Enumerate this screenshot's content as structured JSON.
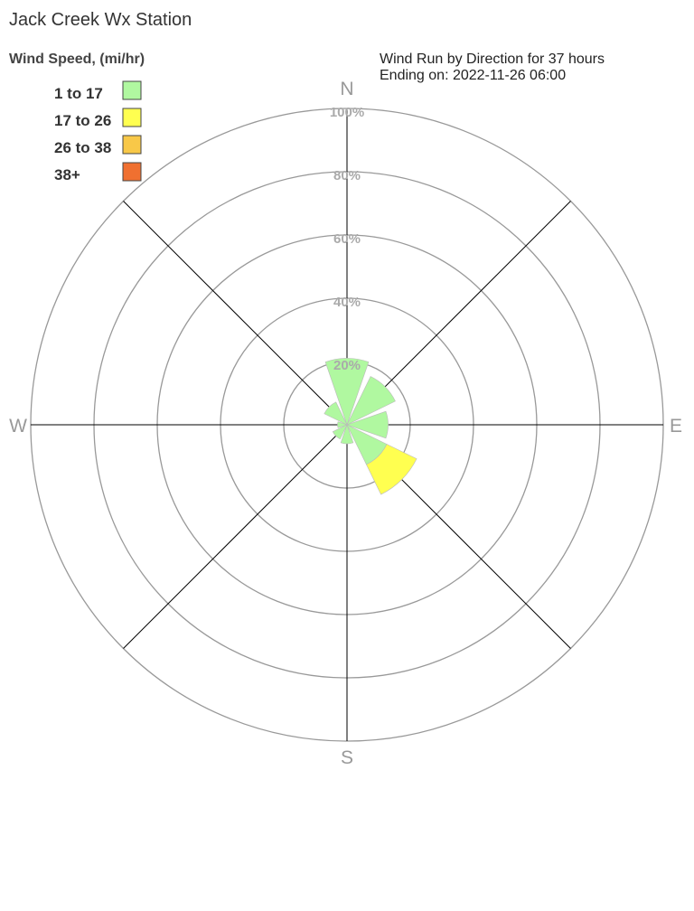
{
  "chart_data": {
    "type": "wind-rose",
    "title": "Jack Creek Wx Station",
    "subtitle_lines": [
      "Wind Run by Direction for 37 hours",
      "Ending on: 2022-11-26 06:00"
    ],
    "legend_title": "Wind Speed, (mi/hr)",
    "legend_placement": "top-left",
    "bands": [
      {
        "name": "1 to 17",
        "color": "#b0f8a0"
      },
      {
        "name": "17 to 26",
        "color": "#ffff50"
      },
      {
        "name": "26 to 38",
        "color": "#f8c848"
      },
      {
        "name": "38+",
        "color": "#f07030"
      }
    ],
    "compass_labels": {
      "N": "N",
      "E": "E",
      "S": "S",
      "W": "W"
    },
    "radial_ticks": [
      "20%",
      "40%",
      "60%",
      "80%",
      "100%"
    ],
    "radial_range": [
      0,
      100
    ],
    "directions": [
      "N",
      "NE",
      "E",
      "SE",
      "S",
      "SW",
      "W",
      "NW"
    ],
    "values_percent_by_band": [
      [
        21,
        0,
        0,
        0
      ],
      [
        17,
        0,
        0,
        0
      ],
      [
        13,
        0,
        0,
        0
      ],
      [
        14,
        10.5,
        0,
        0
      ],
      [
        6,
        0,
        0,
        0
      ],
      [
        5,
        0,
        0,
        0
      ],
      [
        3,
        0,
        0,
        0
      ],
      [
        8,
        0,
        0,
        0
      ]
    ]
  }
}
